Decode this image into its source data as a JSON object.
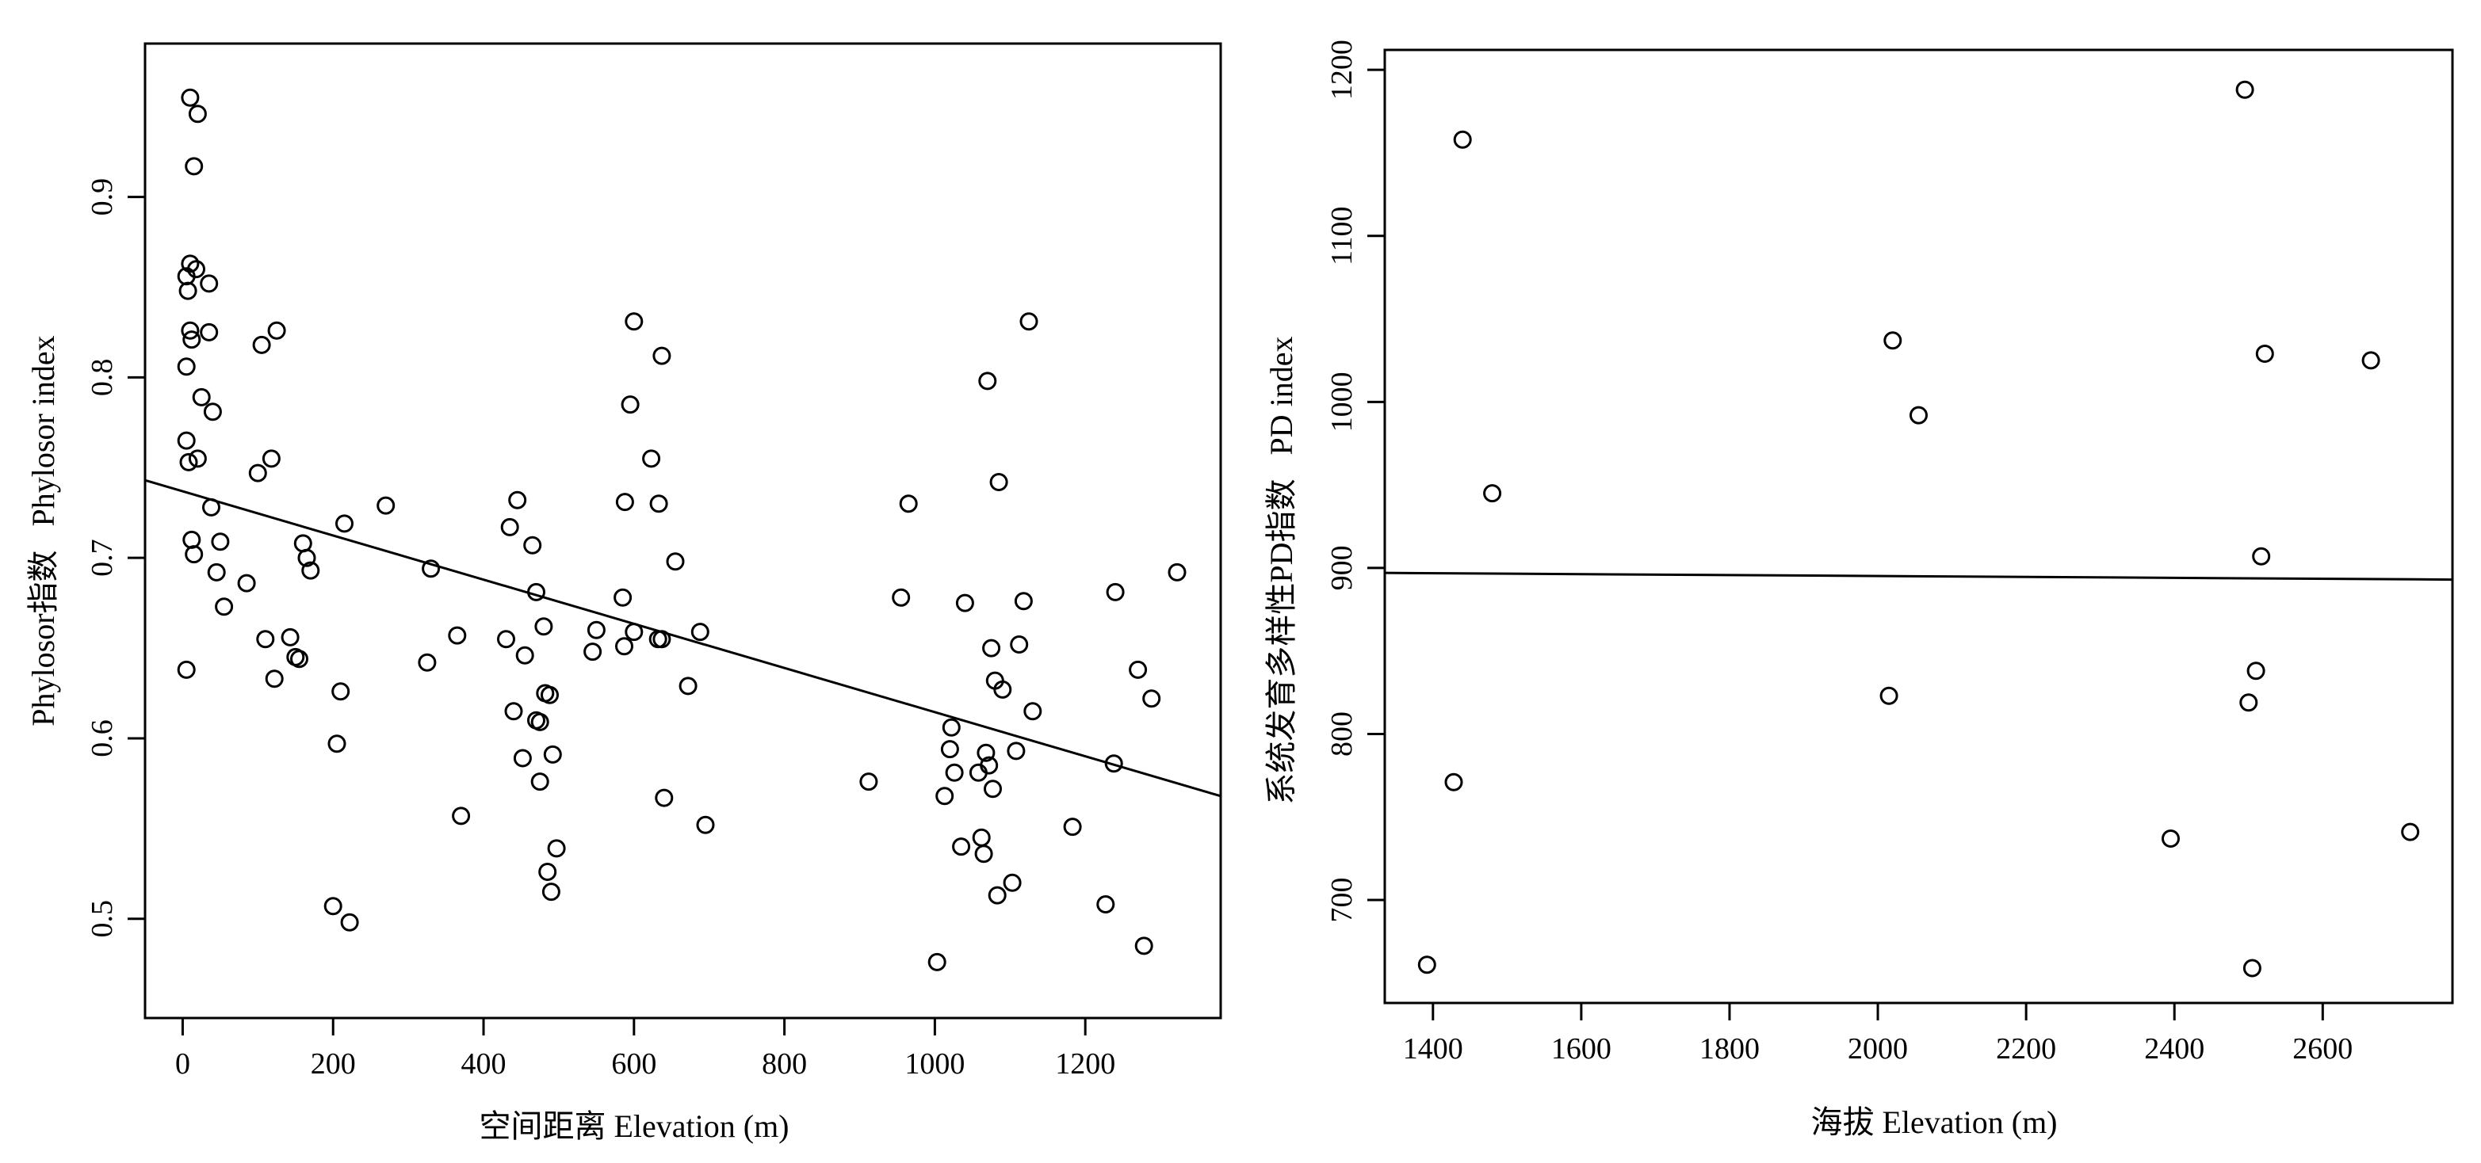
{
  "chart_data": [
    {
      "type": "scatter",
      "title": "",
      "xlabel": "空间距离  Elevation (m)",
      "ylabel_cn": "Phylosor指数",
      "ylabel_en": "Phylosor index",
      "xlim": [
        -50,
        1380
      ],
      "ylim": [
        0.445,
        0.985
      ],
      "x_ticks": [
        0,
        200,
        400,
        600,
        800,
        1000,
        1200
      ],
      "y_ticks": [
        0.5,
        0.6,
        0.7,
        0.8,
        0.9
      ],
      "grid": false,
      "trend_line": {
        "x": [
          -50,
          1380
        ],
        "y": [
          0.743,
          0.568
        ]
      },
      "series": [
        {
          "x": [
            10,
            20,
            15,
            10,
            18,
            5,
            7,
            35,
            10,
            35,
            12,
            5,
            25,
            40,
            5,
            20,
            8,
            38,
            12,
            50,
            15,
            45,
            55,
            5,
            105,
            125,
            100,
            118,
            85,
            160,
            165,
            170,
            110,
            143,
            150,
            155,
            122,
            215,
            210,
            205,
            200,
            222,
            270,
            330,
            325,
            365,
            370,
            445,
            435,
            465,
            470,
            480,
            430,
            455,
            440,
            470,
            475,
            482,
            488,
            452,
            492,
            475,
            485,
            497,
            490,
            600,
            637,
            595,
            623,
            588,
            633,
            655,
            585,
            550,
            600,
            632,
            545,
            587,
            637,
            672,
            688,
            640,
            695,
            965,
            955,
            1040,
            1070,
            1085,
            1125,
            1118,
            1075,
            1080,
            1090,
            1112,
            1022,
            1020,
            1068,
            1072,
            1026,
            1058,
            1108,
            1077,
            1183,
            1240,
            1238,
            1270,
            1288,
            1322,
            1130,
            1013,
            912,
            1035,
            1062,
            1065,
            1103,
            1083,
            1227,
            1278,
            1003
          ],
          "y": [
            0.955,
            0.946,
            0.917,
            0.863,
            0.86,
            0.856,
            0.848,
            0.852,
            0.826,
            0.825,
            0.821,
            0.806,
            0.789,
            0.781,
            0.765,
            0.755,
            0.753,
            0.728,
            0.71,
            0.709,
            0.702,
            0.692,
            0.673,
            0.638,
            0.818,
            0.826,
            0.747,
            0.755,
            0.686,
            0.708,
            0.7,
            0.693,
            0.655,
            0.656,
            0.645,
            0.644,
            0.633,
            0.719,
            0.626,
            0.597,
            0.507,
            0.498,
            0.729,
            0.694,
            0.642,
            0.657,
            0.557,
            0.732,
            0.717,
            0.707,
            0.681,
            0.662,
            0.655,
            0.646,
            0.615,
            0.61,
            0.609,
            0.625,
            0.624,
            0.589,
            0.591,
            0.576,
            0.526,
            0.539,
            0.515,
            0.831,
            0.812,
            0.785,
            0.755,
            0.731,
            0.73,
            0.698,
            0.678,
            0.66,
            0.659,
            0.655,
            0.648,
            0.651,
            0.655,
            0.629,
            0.659,
            0.567,
            0.552,
            0.73,
            0.678,
            0.675,
            0.798,
            0.742,
            0.831,
            0.676,
            0.65,
            0.632,
            0.627,
            0.652,
            0.606,
            0.594,
            0.592,
            0.585,
            0.581,
            0.581,
            0.593,
            0.572,
            0.551,
            0.681,
            0.586,
            0.638,
            0.622,
            0.692,
            0.615,
            0.568,
            0.576,
            0.54,
            0.545,
            0.536,
            0.52,
            0.513,
            0.508,
            0.485,
            0.476
          ]
        }
      ]
    },
    {
      "type": "scatter",
      "title": "",
      "xlabel": "海拔  Elevation (m)",
      "ylabel_cn": "系统发育多样性PD指数",
      "ylabel_en": "PD index",
      "xlim": [
        1335,
        2775
      ],
      "ylim": [
        638,
        1212
      ],
      "x_ticks": [
        1400,
        1600,
        1800,
        2000,
        2200,
        2400,
        2600
      ],
      "y_ticks": [
        700,
        800,
        900,
        1000,
        1100,
        1200
      ],
      "grid": false,
      "trend_line": {
        "x": [
          1335,
          2775
        ],
        "y": [
          897,
          893
        ]
      },
      "series": [
        {
          "x": [
            1440,
            1480,
            2020,
            2055,
            2495,
            2522,
            2665,
            2517,
            2015,
            2510,
            2500,
            1428,
            2395,
            2718,
            1392,
            2505
          ],
          "y": [
            1158,
            945,
            1037,
            992,
            1188,
            1029,
            1025,
            907,
            823,
            838,
            819,
            771,
            737,
            741,
            661,
            659
          ]
        }
      ]
    }
  ]
}
